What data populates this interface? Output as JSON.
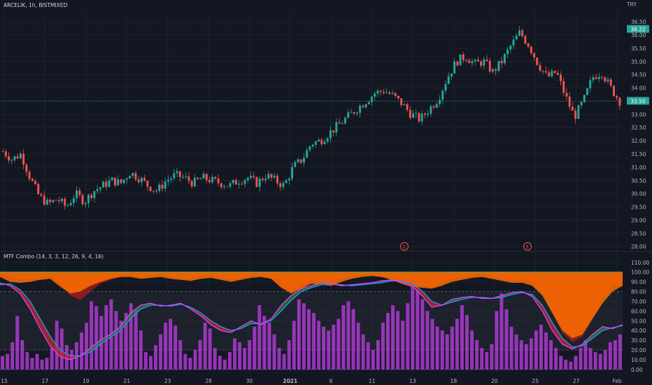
{
  "header": {
    "title": "ARCELIK, 1h, BISTMIXED",
    "currency": "TRY"
  },
  "indicator": {
    "title": "MTF Combo (14, 3, 3, 12, 26, 9, 4, 16)"
  },
  "colors": {
    "background": "#131722",
    "grid": "#1e222d",
    "up": "#26a69a",
    "down": "#ef5350",
    "price_tag": "#26a69a",
    "orange": "#ff6d00",
    "purple": "#c23ee8",
    "blue_line": "#2196f3",
    "magenta_line": "#e040fb"
  },
  "chart_data": [
    {
      "type": "candlestick",
      "title": "ARCELIK, 1h, BISTMIXED",
      "x_tick_labels": [
        "15",
        "17",
        "19",
        "21",
        "23",
        "28",
        "30",
        "2021",
        "6",
        "11",
        "13",
        "18",
        "20",
        "25",
        "27",
        "Feb"
      ],
      "y_tick_labels": [
        "36.50",
        "36.00",
        "35.50",
        "35.00",
        "34.50",
        "34.00",
        "33.50",
        "33.00",
        "32.50",
        "32.00",
        "31.50",
        "31.00",
        "30.50",
        "30.00",
        "29.50",
        "29.00",
        "28.50",
        "28.00"
      ],
      "ylim": [
        27.9,
        36.9
      ],
      "price_labels": [
        "36.22",
        "33.50"
      ],
      "event_markers": [
        "E",
        "E"
      ],
      "close_path": [
        31.6,
        31.3,
        31.5,
        30.6,
        29.9,
        29.6,
        29.8,
        29.5,
        30.0,
        29.7,
        30.1,
        30.3,
        30.5,
        30.4,
        30.8,
        30.6,
        30.3,
        30.1,
        30.5,
        30.7,
        30.6,
        30.4,
        30.6,
        30.5,
        30.4,
        30.3,
        30.5,
        30.6,
        30.4,
        30.7,
        30.5,
        30.3,
        31.0,
        31.3,
        31.9,
        32.0,
        32.3,
        32.6,
        32.9,
        33.2,
        33.5,
        33.8,
        33.9,
        33.7,
        33.4,
        33.0,
        32.8,
        33.2,
        33.6,
        34.4,
        35.0,
        35.2,
        34.9,
        35.0,
        34.6,
        35.0,
        35.6,
        36.1,
        35.6,
        34.9,
        34.4,
        34.6,
        33.7,
        32.9,
        33.5,
        34.4,
        34.6,
        34.0,
        33.5
      ],
      "series": [
        {
          "name": "ARCELIK"
        }
      ]
    },
    {
      "type": "area",
      "title": "MTF Combo (14, 3, 3, 12, 26, 9, 4, 16)",
      "y_tick_labels": [
        "110.00",
        "100.00",
        "90.00",
        "80.00",
        "70.00",
        "60.00",
        "50.00",
        "40.00",
        "30.00",
        "20.00",
        "10.00",
        "0.00"
      ],
      "ylim": [
        -3,
        112
      ],
      "stoch_k": [
        89,
        86,
        78,
        62,
        42,
        24,
        13,
        10,
        14,
        22,
        30,
        36,
        44,
        58,
        66,
        68,
        65,
        66,
        68,
        62,
        55,
        46,
        40,
        38,
        44,
        50,
        46,
        52,
        66,
        76,
        83,
        86,
        89,
        88,
        86,
        87,
        88,
        89,
        91,
        92,
        90,
        86,
        76,
        64,
        66,
        72,
        74,
        75,
        73,
        73,
        76,
        79,
        80,
        75,
        60,
        40,
        26,
        21,
        26,
        36,
        44,
        42,
        46
      ],
      "stoch_d": [
        87,
        88,
        82,
        70,
        52,
        34,
        20,
        14,
        14,
        18,
        26,
        33,
        40,
        52,
        62,
        66,
        66,
        65,
        67,
        64,
        58,
        50,
        44,
        40,
        42,
        47,
        47,
        50,
        60,
        71,
        80,
        84,
        87,
        88,
        87,
        86,
        87,
        88,
        89,
        91,
        91,
        88,
        81,
        70,
        66,
        69,
        72,
        74,
        74,
        73,
        74,
        77,
        79,
        77,
        66,
        48,
        32,
        23,
        24,
        32,
        40,
        43,
        45
      ],
      "top_band": [
        98,
        95,
        93,
        92,
        94,
        96,
        88,
        76,
        71,
        80,
        88,
        92,
        96,
        97,
        95,
        96,
        97,
        95,
        94,
        93,
        96,
        97,
        95,
        93,
        94,
        96,
        97,
        95,
        86,
        80,
        86,
        92,
        90,
        88,
        93,
        96,
        97,
        98,
        96,
        93,
        90,
        87,
        86,
        84,
        88,
        93,
        95,
        97,
        98,
        96,
        93,
        91,
        92,
        89,
        78,
        58,
        38,
        28,
        34,
        52,
        72,
        88,
        85
      ],
      "inner_band": [
        95,
        90,
        89,
        90,
        92,
        93,
        85,
        78,
        80,
        86,
        90,
        93,
        95,
        95,
        93,
        94,
        95,
        93,
        92,
        91,
        93,
        94,
        92,
        90,
        92,
        94,
        95,
        93,
        84,
        78,
        83,
        88,
        87,
        86,
        90,
        93,
        95,
        96,
        95,
        92,
        88,
        85,
        84,
        83,
        86,
        90,
        92,
        94,
        95,
        93,
        91,
        89,
        89,
        86,
        76,
        58,
        40,
        32,
        36,
        52,
        68,
        80,
        86
      ],
      "histogram": [
        14,
        16,
        28,
        55,
        30,
        18,
        12,
        16,
        10,
        12,
        22,
        50,
        42,
        25,
        20,
        28,
        38,
        48,
        70,
        65,
        55,
        66,
        72,
        60,
        50,
        58,
        68,
        62,
        40,
        18,
        14,
        25,
        36,
        48,
        52,
        45,
        30,
        16,
        12,
        20,
        30,
        48,
        42,
        22,
        14,
        10,
        18,
        32,
        28,
        22,
        30,
        44,
        66,
        55,
        48,
        36,
        22,
        16,
        30,
        50,
        72,
        68,
        62,
        58,
        50,
        44,
        40,
        46,
        52,
        66,
        70,
        62,
        48,
        36,
        28,
        20,
        30,
        48,
        58,
        66,
        60,
        50,
        68,
        86,
        82,
        72,
        60,
        52,
        44,
        40,
        36,
        44,
        52,
        66,
        56,
        40,
        30,
        22,
        18,
        26,
        60,
        78,
        62,
        44,
        36,
        30,
        26,
        32,
        40,
        46,
        38,
        30,
        22,
        14,
        10,
        8,
        14,
        22,
        30,
        22,
        18,
        16,
        20,
        28,
        30,
        36
      ],
      "levels": [
        100,
        80,
        20,
        0
      ]
    }
  ]
}
